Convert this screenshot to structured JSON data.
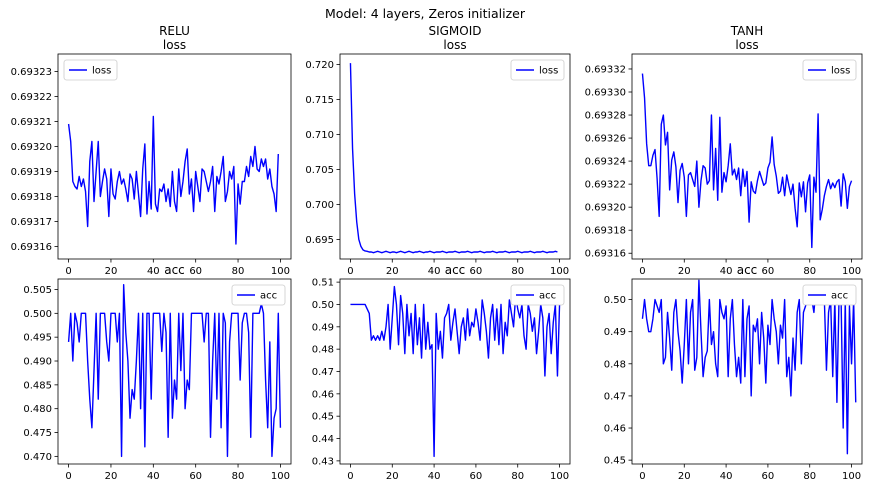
{
  "suptitle": "Model: 4 layers, Zeros initializer",
  "colors": {
    "line": "#0000ff",
    "axis": "#000000",
    "background": "#ffffff"
  },
  "chart_data": [
    {
      "type": "line",
      "title_top": "RELU",
      "title": "loss",
      "legend": "loss",
      "legend_loc": "upper left",
      "xlim": [
        -5,
        105
      ],
      "ylim": [
        0.693155,
        0.693237
      ],
      "xticks": [
        0,
        20,
        40,
        60,
        80,
        100
      ],
      "yticks": [
        0.69316,
        0.69317,
        0.69318,
        0.69319,
        0.6932,
        0.69321,
        0.69322,
        0.69323
      ],
      "ytick_decimals": 5,
      "x_start": 0,
      "values": [
        0.693209,
        0.693202,
        0.693186,
        0.693184,
        0.693183,
        0.693188,
        0.693184,
        0.693187,
        0.693182,
        0.693168,
        0.693194,
        0.693202,
        0.693178,
        0.69319,
        0.693202,
        0.69318,
        0.693186,
        0.693191,
        0.693187,
        0.693172,
        0.693191,
        0.693181,
        0.693179,
        0.693186,
        0.69319,
        0.693185,
        0.693187,
        0.693183,
        0.693178,
        0.693189,
        0.693187,
        0.693179,
        0.69319,
        0.693181,
        0.693172,
        0.693191,
        0.693201,
        0.693173,
        0.693186,
        0.693175,
        0.693212,
        0.693177,
        0.693174,
        0.693183,
        0.693182,
        0.693185,
        0.693178,
        0.693183,
        0.693176,
        0.69319,
        0.693178,
        0.693174,
        0.693191,
        0.69318,
        0.693186,
        0.693194,
        0.693199,
        0.693181,
        0.693187,
        0.693174,
        0.69319,
        0.693184,
        0.693178,
        0.693191,
        0.69319,
        0.693186,
        0.693182,
        0.693186,
        0.693192,
        0.693174,
        0.693188,
        0.693185,
        0.69319,
        0.693196,
        0.693178,
        0.693182,
        0.69319,
        0.693187,
        0.693192,
        0.693161,
        0.693185,
        0.693177,
        0.693186,
        0.693186,
        0.693192,
        0.693188,
        0.693196,
        0.693192,
        0.6932,
        0.693191,
        0.69319,
        0.693195,
        0.693192,
        0.693195,
        0.693187,
        0.693191,
        0.693184,
        0.693181,
        0.693174,
        0.693197
      ]
    },
    {
      "type": "line",
      "title_top": "SIGMOID",
      "title": "loss",
      "legend": "loss",
      "legend_loc": "upper right",
      "xlim": [
        -5,
        105
      ],
      "ylim": [
        0.6922,
        0.7215
      ],
      "xticks": [
        0,
        20,
        40,
        60,
        80,
        100
      ],
      "yticks": [
        0.695,
        0.7,
        0.705,
        0.71,
        0.715,
        0.72
      ],
      "ytick_decimals": 3,
      "x_start": 0,
      "values": [
        0.7202,
        0.708,
        0.7015,
        0.6975,
        0.695,
        0.694,
        0.6935,
        0.69335,
        0.6933,
        0.6932,
        0.6932,
        0.6931,
        0.6932,
        0.6933,
        0.6932,
        0.6931,
        0.6932,
        0.6933,
        0.6932,
        0.6931,
        0.6932,
        0.6932,
        0.6931,
        0.6932,
        0.6933,
        0.6932,
        0.6931,
        0.6932,
        0.6933,
        0.6932,
        0.6931,
        0.6932,
        0.6932,
        0.6933,
        0.6932,
        0.6931,
        0.6932,
        0.6932,
        0.6933,
        0.6932,
        0.6931,
        0.6932,
        0.6932,
        0.6932,
        0.6933,
        0.6932,
        0.6931,
        0.6932,
        0.6932,
        0.6932,
        0.6933,
        0.6932,
        0.6931,
        0.6932,
        0.6932,
        0.6932,
        0.6933,
        0.6932,
        0.6931,
        0.6932,
        0.6932,
        0.6932,
        0.6933,
        0.6932,
        0.6931,
        0.6932,
        0.6932,
        0.6932,
        0.6933,
        0.6932,
        0.6931,
        0.6932,
        0.6932,
        0.6932,
        0.6933,
        0.6932,
        0.6931,
        0.6932,
        0.6932,
        0.6932,
        0.6933,
        0.6932,
        0.6931,
        0.6932,
        0.6932,
        0.6932,
        0.6933,
        0.6932,
        0.6931,
        0.6932,
        0.6932,
        0.6932,
        0.6933,
        0.6932,
        0.6931,
        0.6932,
        0.6932,
        0.6932,
        0.6933,
        0.6932
      ]
    },
    {
      "type": "line",
      "title_top": "TANH",
      "title": "loss",
      "legend": "loss",
      "legend_loc": "upper right",
      "xlim": [
        -5,
        105
      ],
      "ylim": [
        0.693155,
        0.693333
      ],
      "xticks": [
        0,
        20,
        40,
        60,
        80,
        100
      ],
      "yticks": [
        0.69316,
        0.69318,
        0.6932,
        0.69322,
        0.69324,
        0.69326,
        0.69328,
        0.6933,
        0.69332
      ],
      "ytick_decimals": 5,
      "x_start": 0,
      "values": [
        0.693316,
        0.693295,
        0.693255,
        0.693236,
        0.693236,
        0.693245,
        0.69325,
        0.693225,
        0.693192,
        0.693272,
        0.69328,
        0.693254,
        0.693265,
        0.693215,
        0.693241,
        0.693248,
        0.693235,
        0.693204,
        0.693232,
        0.693238,
        0.693226,
        0.693192,
        0.693228,
        0.69323,
        0.693224,
        0.693218,
        0.69324,
        0.6932,
        0.693223,
        0.693236,
        0.693234,
        0.69322,
        0.693223,
        0.69328,
        0.693215,
        0.693251,
        0.693206,
        0.693278,
        0.693213,
        0.69323,
        0.693222,
        0.693236,
        0.693255,
        0.693228,
        0.693233,
        0.693224,
        0.693234,
        0.69321,
        0.693233,
        0.693218,
        0.693231,
        0.693187,
        0.693222,
        0.693214,
        0.693212,
        0.693223,
        0.693231,
        0.693225,
        0.693219,
        0.693221,
        0.693234,
        0.693239,
        0.693261,
        0.693237,
        0.693227,
        0.693212,
        0.693214,
        0.693226,
        0.69321,
        0.693228,
        0.693219,
        0.693211,
        0.69322,
        0.693199,
        0.693183,
        0.693221,
        0.693209,
        0.693222,
        0.693196,
        0.693221,
        0.693228,
        0.693165,
        0.693226,
        0.693213,
        0.693281,
        0.693189,
        0.693198,
        0.69321,
        0.693218,
        0.693224,
        0.693216,
        0.693221,
        0.693217,
        0.693222,
        0.693224,
        0.693201,
        0.693229,
        0.693222,
        0.693199,
        0.693218,
        0.693223
      ]
    },
    {
      "type": "line",
      "title": "acc",
      "legend": "acc",
      "legend_loc": "upper right",
      "xlim": [
        -5,
        105
      ],
      "ylim": [
        0.4684,
        0.5072
      ],
      "xticks": [
        0,
        20,
        40,
        60,
        80,
        100
      ],
      "yticks": [
        0.47,
        0.475,
        0.48,
        0.485,
        0.49,
        0.495,
        0.5,
        0.505
      ],
      "ytick_decimals": 3,
      "x_start": 0,
      "values": [
        0.494,
        0.5,
        0.49,
        0.5,
        0.498,
        0.494,
        0.5,
        0.5,
        0.5,
        0.49,
        0.482,
        0.476,
        0.488,
        0.5,
        0.482,
        0.5,
        0.5,
        0.5,
        0.494,
        0.49,
        0.5,
        0.5,
        0.5,
        0.494,
        0.5,
        0.47,
        0.506,
        0.496,
        0.49,
        0.478,
        0.484,
        0.482,
        0.49,
        0.5,
        0.48,
        0.5,
        0.472,
        0.5,
        0.5,
        0.482,
        0.5,
        0.5,
        0.5,
        0.5,
        0.492,
        0.5,
        0.496,
        0.474,
        0.5,
        0.478,
        0.486,
        0.482,
        0.5,
        0.488,
        0.5,
        0.48,
        0.486,
        0.484,
        0.5,
        0.5,
        0.5,
        0.5,
        0.5,
        0.5,
        0.494,
        0.5,
        0.5,
        0.474,
        0.49,
        0.5,
        0.482,
        0.5,
        0.476,
        0.5,
        0.498,
        0.47,
        0.494,
        0.5,
        0.5,
        0.5,
        0.5,
        0.486,
        0.498,
        0.5,
        0.5,
        0.496,
        0.474,
        0.5,
        0.5,
        0.5,
        0.5,
        0.502,
        0.5,
        0.486,
        0.476,
        0.494,
        0.47,
        0.478,
        0.48,
        0.5,
        0.476
      ]
    },
    {
      "type": "line",
      "title": "acc",
      "legend": "acc",
      "legend_loc": "upper right",
      "xlim": [
        -5,
        105
      ],
      "ylim": [
        0.4286,
        0.5114
      ],
      "xticks": [
        0,
        20,
        40,
        60,
        80,
        100
      ],
      "yticks": [
        0.43,
        0.44,
        0.45,
        0.46,
        0.47,
        0.48,
        0.49,
        0.5,
        0.51
      ],
      "ytick_decimals": 2,
      "x_start": 0,
      "values": [
        0.5,
        0.5,
        0.5,
        0.5,
        0.5,
        0.5,
        0.5,
        0.5,
        0.498,
        0.496,
        0.484,
        0.486,
        0.484,
        0.486,
        0.484,
        0.488,
        0.484,
        0.49,
        0.5,
        0.48,
        0.494,
        0.508,
        0.5,
        0.482,
        0.504,
        0.496,
        0.478,
        0.5,
        0.486,
        0.496,
        0.478,
        0.5,
        0.482,
        0.494,
        0.476,
        0.5,
        0.48,
        0.492,
        0.48,
        0.482,
        0.432,
        0.496,
        0.48,
        0.488,
        0.476,
        0.494,
        0.496,
        0.5,
        0.484,
        0.492,
        0.498,
        0.488,
        0.478,
        0.49,
        0.494,
        0.484,
        0.498,
        0.486,
        0.492,
        0.49,
        0.498,
        0.492,
        0.484,
        0.502,
        0.496,
        0.488,
        0.476,
        0.494,
        0.5,
        0.484,
        0.498,
        0.482,
        0.5,
        0.478,
        0.492,
        0.486,
        0.502,
        0.496,
        0.49,
        0.504,
        0.498,
        0.494,
        0.5,
        0.486,
        0.48,
        0.5,
        0.496,
        0.488,
        0.494,
        0.478,
        0.488,
        0.5,
        0.494,
        0.468,
        0.49,
        0.496,
        0.478,
        0.492,
        0.5,
        0.468,
        0.5
      ]
    },
    {
      "type": "line",
      "title": "acc",
      "legend": "acc",
      "legend_loc": "upper right",
      "xlim": [
        -5,
        105
      ],
      "ylim": [
        0.4488,
        0.5064
      ],
      "xticks": [
        0,
        20,
        40,
        60,
        80,
        100
      ],
      "yticks": [
        0.45,
        0.46,
        0.47,
        0.48,
        0.49,
        0.5
      ],
      "ytick_decimals": 2,
      "x_start": 0,
      "values": [
        0.494,
        0.5,
        0.494,
        0.49,
        0.49,
        0.494,
        0.5,
        0.498,
        0.496,
        0.5,
        0.48,
        0.482,
        0.496,
        0.488,
        0.478,
        0.496,
        0.5,
        0.49,
        0.484,
        0.474,
        0.486,
        0.5,
        0.48,
        0.496,
        0.5,
        0.478,
        0.482,
        0.506,
        0.49,
        0.476,
        0.482,
        0.484,
        0.5,
        0.486,
        0.49,
        0.48,
        0.476,
        0.5,
        0.496,
        0.494,
        0.498,
        0.476,
        0.494,
        0.5,
        0.486,
        0.476,
        0.482,
        0.474,
        0.5,
        0.476,
        0.494,
        0.498,
        0.47,
        0.492,
        0.49,
        0.494,
        0.48,
        0.496,
        0.488,
        0.474,
        0.492,
        0.486,
        0.5,
        0.494,
        0.49,
        0.48,
        0.492,
        0.488,
        0.5,
        0.476,
        0.482,
        0.47,
        0.488,
        0.478,
        0.496,
        0.5,
        0.48,
        0.496,
        0.498,
        0.5,
        0.5,
        0.5,
        0.496,
        0.504,
        0.5,
        0.5,
        0.5,
        0.5,
        0.478,
        0.496,
        0.5,
        0.476,
        0.5,
        0.468,
        0.5,
        0.5,
        0.46,
        0.5,
        0.452,
        0.498,
        0.48,
        0.5,
        0.468
      ]
    }
  ]
}
